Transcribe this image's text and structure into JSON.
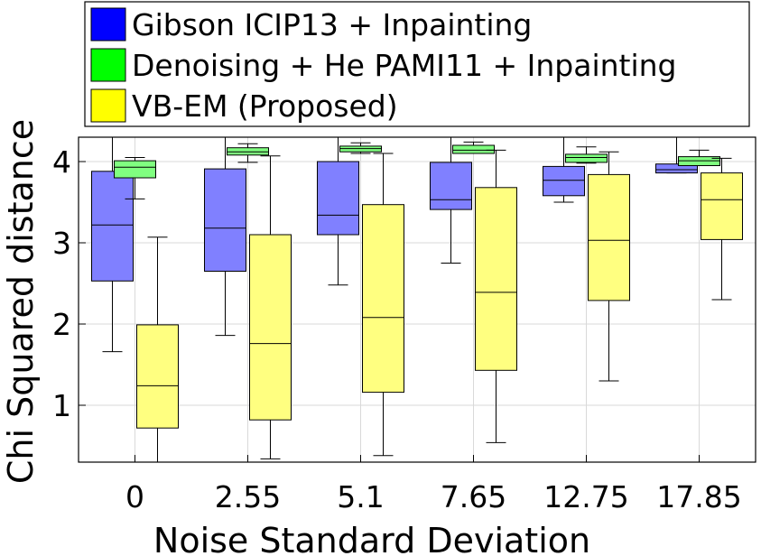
{
  "chart_data": {
    "type": "box",
    "xlabel": "Noise Standard Deviation",
    "ylabel": "Chi Squared distance",
    "categories": [
      "0",
      "2.55",
      "5.1",
      "7.65",
      "12.75",
      "17.85"
    ],
    "yticks": [
      1,
      2,
      3,
      4
    ],
    "ylim": [
      0.3,
      4.3
    ],
    "grid": true,
    "legend_position": "top",
    "series": [
      {
        "name": "Gibson ICIP13 + Inpainting",
        "color": "#8080ff",
        "legend_color": "#0000ff",
        "boxes": [
          {
            "whisker_low": 1.66,
            "q1": 2.53,
            "median": 3.22,
            "q3": 3.88,
            "whisker_high": 4.3
          },
          {
            "whisker_low": 1.86,
            "q1": 2.65,
            "median": 3.18,
            "q3": 3.91,
            "whisker_high": 4.3
          },
          {
            "whisker_low": 2.48,
            "q1": 3.1,
            "median": 3.34,
            "q3": 4.0,
            "whisker_high": 4.3
          },
          {
            "whisker_low": 2.75,
            "q1": 3.41,
            "median": 3.53,
            "q3": 3.99,
            "whisker_high": 4.3
          },
          {
            "whisker_low": 3.5,
            "q1": 3.58,
            "median": 3.77,
            "q3": 3.94,
            "whisker_high": 4.3
          },
          {
            "whisker_low": 3.86,
            "q1": 3.86,
            "median": 3.9,
            "q3": 3.97,
            "whisker_high": 4.3
          }
        ]
      },
      {
        "name": "Denoising + He PAMI11 + Inpainting",
        "color": "#80ff80",
        "legend_color": "#00ff00",
        "boxes": [
          {
            "whisker_low": 3.54,
            "q1": 3.8,
            "median": 3.93,
            "q3": 4.01,
            "whisker_high": 4.05
          },
          {
            "whisker_low": 3.99,
            "q1": 4.08,
            "median": 4.12,
            "q3": 4.17,
            "whisker_high": 4.22
          },
          {
            "whisker_low": 4.1,
            "q1": 4.12,
            "median": 4.16,
            "q3": 4.19,
            "whisker_high": 4.23
          },
          {
            "whisker_low": 4.1,
            "q1": 4.1,
            "median": 4.14,
            "q3": 4.2,
            "whisker_high": 4.24
          },
          {
            "whisker_low": 3.98,
            "q1": 3.99,
            "median": 4.05,
            "q3": 4.09,
            "whisker_high": 4.18
          },
          {
            "whisker_low": 3.95,
            "q1": 3.95,
            "median": 4.01,
            "q3": 4.06,
            "whisker_high": 4.14
          }
        ]
      },
      {
        "name": "VB-EM (Proposed)",
        "color": "#ffff80",
        "legend_color": "#ffff00",
        "boxes": [
          {
            "whisker_low": 0.3,
            "q1": 0.72,
            "median": 1.24,
            "q3": 1.99,
            "whisker_high": 3.07
          },
          {
            "whisker_low": 0.34,
            "q1": 0.82,
            "median": 1.76,
            "q3": 3.1,
            "whisker_high": 4.07
          },
          {
            "whisker_low": 0.38,
            "q1": 1.16,
            "median": 2.08,
            "q3": 3.47,
            "whisker_high": 4.1
          },
          {
            "whisker_low": 0.54,
            "q1": 1.43,
            "median": 2.39,
            "q3": 3.68,
            "whisker_high": 4.14
          },
          {
            "whisker_low": 1.3,
            "q1": 2.29,
            "median": 3.03,
            "q3": 3.84,
            "whisker_high": 4.12
          },
          {
            "whisker_low": 2.3,
            "q1": 3.04,
            "median": 3.53,
            "q3": 3.86,
            "whisker_high": 4.04
          }
        ]
      }
    ]
  }
}
